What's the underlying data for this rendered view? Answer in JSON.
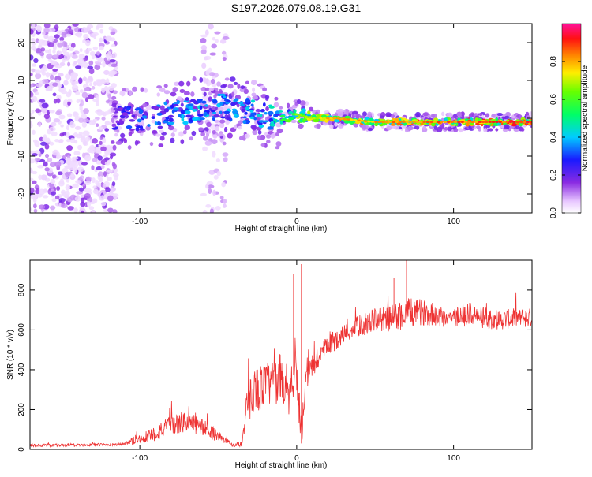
{
  "page_title": "S197.2026.079.08.19.G31",
  "chart_data": [
    {
      "type": "heatmap",
      "title": "S197.2026.079.08.19.G31",
      "xlabel": "Height of straight line (km)",
      "ylabel": "Frequency (Hz)",
      "xlim": [
        -170,
        150
      ],
      "ylim": [
        -25,
        25
      ],
      "xticks": [
        -100,
        0,
        100
      ],
      "yticks": [
        -20,
        -10,
        0,
        10,
        20
      ],
      "grid": false,
      "colorbar": {
        "label": "Normalized spectral amplitude",
        "range": [
          0,
          1
        ],
        "ticks": [
          0.0,
          0.2,
          0.4,
          0.6,
          0.8
        ],
        "tick_labels": [
          "0.0",
          "0.2",
          "0.4",
          "0.6",
          "0.8"
        ],
        "colormap": "rainbow (white-purple-blue-cyan-green-yellow-orange-red-magenta)"
      },
      "ridge": {
        "description": "dominant frequency trace of the signal",
        "x": [
          -115,
          -100,
          -80,
          -60,
          -45,
          -30,
          -15,
          0,
          10,
          25,
          50,
          75,
          100,
          125,
          150
        ],
        "frequency": [
          0,
          0,
          1,
          3,
          3,
          2,
          0,
          1,
          0,
          0,
          -1,
          -1,
          -1,
          -1,
          -1
        ],
        "peak_amplitude": [
          0.3,
          0.35,
          0.4,
          0.45,
          0.4,
          0.45,
          0.5,
          0.7,
          0.75,
          0.85,
          0.85,
          0.9,
          0.9,
          0.95,
          0.95
        ]
      },
      "noise_regions": [
        {
          "x_range": [
            -170,
            -115
          ],
          "frequency_range": [
            -25,
            25
          ],
          "amplitude": "0.0-0.2 (diffuse noise)"
        },
        {
          "x_range": [
            -60,
            -45
          ],
          "frequency_range": [
            -25,
            25
          ],
          "amplitude": "0.0-0.15 (sparse)"
        }
      ]
    },
    {
      "type": "line",
      "title": "",
      "xlabel": "Height of straight line (km)",
      "ylabel": "SNR (10 * v/v)",
      "xlim": [
        -170,
        150
      ],
      "ylim": [
        0,
        950
      ],
      "xticks": [
        -100,
        0,
        100
      ],
      "yticks": [
        0,
        200,
        400,
        600,
        800
      ],
      "grid": false,
      "color": "#ee3333",
      "series": [
        {
          "name": "SNR",
          "x": [
            -170,
            -140,
            -110,
            -105,
            -90,
            -80,
            -70,
            -60,
            -50,
            -45,
            -40,
            -35,
            -32,
            -28,
            -20,
            -15,
            -10,
            -5,
            0,
            3,
            5,
            10,
            20,
            30,
            40,
            50,
            60,
            70,
            80,
            90,
            100,
            110,
            120,
            130,
            140,
            150
          ],
          "y": [
            20,
            22,
            25,
            40,
            80,
            120,
            140,
            110,
            70,
            40,
            20,
            30,
            180,
            300,
            320,
            340,
            360,
            300,
            420,
            30,
            300,
            420,
            520,
            580,
            620,
            650,
            660,
            680,
            690,
            670,
            660,
            680,
            660,
            650,
            660,
            660
          ],
          "noise_band": [
            15,
            15,
            15,
            40,
            80,
            100,
            110,
            90,
            60,
            30,
            15,
            30,
            200,
            230,
            230,
            240,
            250,
            250,
            250,
            150,
            150,
            150,
            110,
            100,
            110,
            120,
            140,
            160,
            130,
            110,
            110,
            120,
            110,
            100,
            100,
            100
          ]
        }
      ]
    }
  ]
}
